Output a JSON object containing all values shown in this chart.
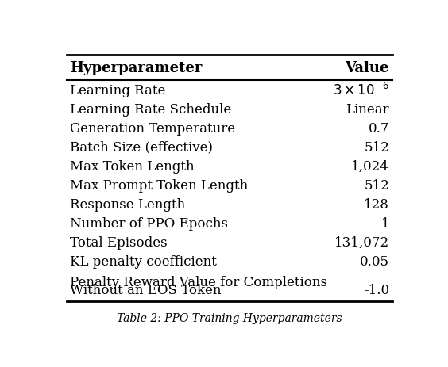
{
  "title": "Table 2: PPO Training Hyperparameters",
  "col_headers": [
    "Hyperparameter",
    "Value"
  ],
  "rows": [
    [
      "Learning Rate",
      "$3 \\times 10^{-6}$"
    ],
    [
      "Learning Rate Schedule",
      "Linear"
    ],
    [
      "Generation Temperature",
      "0.7"
    ],
    [
      "Batch Size (effective)",
      "512"
    ],
    [
      "Max Token Length",
      "1,024"
    ],
    [
      "Max Prompt Token Length",
      "512"
    ],
    [
      "Response Length",
      "128"
    ],
    [
      "Number of PPO Epochs",
      "1"
    ],
    [
      "Total Episodes",
      "131,072"
    ],
    [
      "KL penalty coefficient",
      "0.05"
    ],
    [
      "Penalty Reward Value for Completions\nWithout an EOS Token",
      "-1.0"
    ]
  ],
  "bg_color": "#ffffff",
  "text_color": "#000000",
  "header_fontsize": 13,
  "body_fontsize": 12,
  "caption": "Table 2: PPO Training Hyperparameters",
  "caption_fontsize": 10,
  "figsize": [
    5.64,
    4.64
  ],
  "dpi": 100
}
